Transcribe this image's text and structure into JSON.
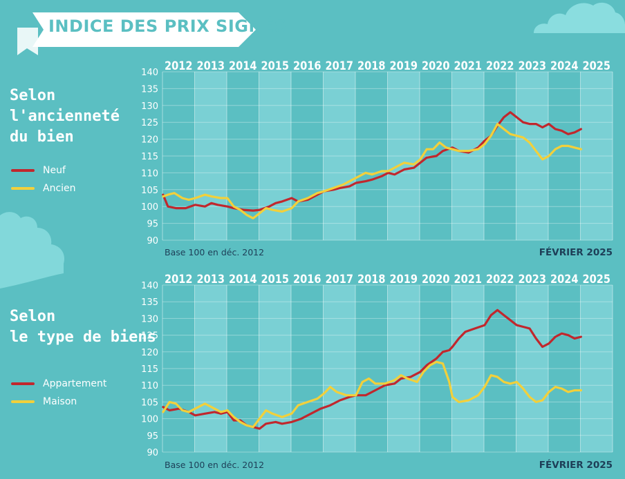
{
  "page": {
    "title": "INDICE DES PRIX SIGNÉS",
    "colors": {
      "background": "#5bbfc2",
      "band_light": "#82d5d8",
      "band_dark": "#5bbfc2",
      "red": "#c1272d",
      "yellow": "#f2d03b",
      "title_text": "#5bbfc2",
      "footnote_text": "#1d3e57"
    }
  },
  "chart_data": [
    {
      "type": "line",
      "section_title": [
        "Selon",
        "l'ancienneté",
        "du bien"
      ],
      "years": [
        "2012",
        "2013",
        "2014",
        "2015",
        "2016",
        "2017",
        "2018",
        "2019",
        "2020",
        "2021",
        "2022",
        "2023",
        "2024",
        "2025"
      ],
      "ylim": [
        90,
        140
      ],
      "yticks": [
        90,
        95,
        100,
        105,
        110,
        115,
        120,
        125,
        130,
        135,
        140
      ],
      "base_note": "Base 100 en déc. 2012",
      "date_note": "FÉVRIER 2025",
      "series": [
        {
          "name": "Neuf",
          "color": "#c1272d",
          "points": [
            [
              2012.0,
              103.5
            ],
            [
              2012.15,
              100
            ],
            [
              2012.4,
              99.5
            ],
            [
              2012.7,
              99.5
            ],
            [
              2013.0,
              100.5
            ],
            [
              2013.3,
              100
            ],
            [
              2013.5,
              101
            ],
            [
              2013.7,
              100.5
            ],
            [
              2014.0,
              100
            ],
            [
              2014.2,
              99.5
            ],
            [
              2014.5,
              99
            ],
            [
              2014.8,
              98.8
            ],
            [
              2015.0,
              99
            ],
            [
              2015.3,
              100
            ],
            [
              2015.5,
              101
            ],
            [
              2015.7,
              101.5
            ],
            [
              2016.0,
              102.5
            ],
            [
              2016.2,
              101.5
            ],
            [
              2016.5,
              102
            ],
            [
              2016.8,
              103.5
            ],
            [
              2017.0,
              104.5
            ],
            [
              2017.3,
              105
            ],
            [
              2017.5,
              105.5
            ],
            [
              2017.8,
              106
            ],
            [
              2018.0,
              107
            ],
            [
              2018.3,
              107.5
            ],
            [
              2018.5,
              108
            ],
            [
              2018.8,
              109
            ],
            [
              2019.0,
              110
            ],
            [
              2019.2,
              109.5
            ],
            [
              2019.5,
              111
            ],
            [
              2019.8,
              111.5
            ],
            [
              2020.0,
              113
            ],
            [
              2020.2,
              114.5
            ],
            [
              2020.5,
              115
            ],
            [
              2020.7,
              116.5
            ],
            [
              2021.0,
              117.5
            ],
            [
              2021.2,
              116.5
            ],
            [
              2021.5,
              116
            ],
            [
              2021.8,
              117.5
            ],
            [
              2022.0,
              119.5
            ],
            [
              2022.2,
              121
            ],
            [
              2022.4,
              124
            ],
            [
              2022.6,
              126.5
            ],
            [
              2022.8,
              128
            ],
            [
              2023.0,
              126.5
            ],
            [
              2023.2,
              125
            ],
            [
              2023.4,
              124.5
            ],
            [
              2023.6,
              124.5
            ],
            [
              2023.8,
              123.5
            ],
            [
              2024.0,
              124.5
            ],
            [
              2024.2,
              123
            ],
            [
              2024.4,
              122.5
            ],
            [
              2024.6,
              121.5
            ],
            [
              2024.8,
              122
            ],
            [
              2025.0,
              123
            ]
          ]
        },
        {
          "name": "Ancien",
          "color": "#f2d03b",
          "points": [
            [
              2012.0,
              103
            ],
            [
              2012.15,
              103.5
            ],
            [
              2012.35,
              104
            ],
            [
              2012.6,
              102.5
            ],
            [
              2012.8,
              102
            ],
            [
              2013.0,
              102.5
            ],
            [
              2013.3,
              103.5
            ],
            [
              2013.5,
              103
            ],
            [
              2013.8,
              102.5
            ],
            [
              2014.0,
              102.5
            ],
            [
              2014.2,
              100
            ],
            [
              2014.4,
              99
            ],
            [
              2014.6,
              97.5
            ],
            [
              2014.8,
              96.5
            ],
            [
              2015.0,
              98
            ],
            [
              2015.2,
              99.5
            ],
            [
              2015.4,
              99
            ],
            [
              2015.7,
              98.5
            ],
            [
              2016.0,
              99.5
            ],
            [
              2016.2,
              101.5
            ],
            [
              2016.5,
              102.5
            ],
            [
              2016.8,
              104
            ],
            [
              2017.0,
              104.5
            ],
            [
              2017.3,
              105.5
            ],
            [
              2017.6,
              106.5
            ],
            [
              2017.8,
              107.5
            ],
            [
              2018.0,
              108.5
            ],
            [
              2018.3,
              110
            ],
            [
              2018.5,
              109.5
            ],
            [
              2018.8,
              110.5
            ],
            [
              2019.0,
              110.5
            ],
            [
              2019.3,
              112
            ],
            [
              2019.5,
              113
            ],
            [
              2019.8,
              112.5
            ],
            [
              2020.0,
              114
            ],
            [
              2020.2,
              117
            ],
            [
              2020.4,
              117
            ],
            [
              2020.6,
              119
            ],
            [
              2020.8,
              117.5
            ],
            [
              2021.0,
              117
            ],
            [
              2021.2,
              116.5
            ],
            [
              2021.5,
              116.5
            ],
            [
              2021.8,
              117
            ],
            [
              2022.0,
              118.5
            ],
            [
              2022.2,
              121
            ],
            [
              2022.4,
              124.5
            ],
            [
              2022.6,
              123
            ],
            [
              2022.8,
              121.5
            ],
            [
              2023.0,
              121
            ],
            [
              2023.2,
              120.5
            ],
            [
              2023.4,
              119
            ],
            [
              2023.6,
              116.5
            ],
            [
              2023.8,
              114
            ],
            [
              2024.0,
              115
            ],
            [
              2024.2,
              117
            ],
            [
              2024.4,
              118
            ],
            [
              2024.6,
              118
            ],
            [
              2024.8,
              117.5
            ],
            [
              2025.0,
              117
            ]
          ]
        }
      ]
    },
    {
      "type": "line",
      "section_title": [
        "Selon",
        "le type de biens"
      ],
      "years": [
        "2012",
        "2013",
        "2014",
        "2015",
        "2016",
        "2017",
        "2018",
        "2019",
        "2020",
        "2021",
        "2022",
        "2023",
        "2024",
        "2025"
      ],
      "ylim": [
        90,
        140
      ],
      "yticks": [
        90,
        95,
        100,
        105,
        110,
        115,
        120,
        125,
        130,
        135,
        140
      ],
      "base_note": "Base 100 en déc. 2012",
      "date_note": "FÉVRIER 2025",
      "series": [
        {
          "name": "Appartement",
          "color": "#c1272d",
          "points": [
            [
              2012.0,
              103.5
            ],
            [
              2012.2,
              102.5
            ],
            [
              2012.5,
              103
            ],
            [
              2012.8,
              102
            ],
            [
              2013.0,
              101
            ],
            [
              2013.3,
              101.5
            ],
            [
              2013.6,
              102
            ],
            [
              2013.8,
              101.5
            ],
            [
              2014.0,
              102
            ],
            [
              2014.2,
              99.5
            ],
            [
              2014.4,
              99.5
            ],
            [
              2014.6,
              98
            ],
            [
              2014.8,
              97.5
            ],
            [
              2015.0,
              97
            ],
            [
              2015.2,
              98.5
            ],
            [
              2015.5,
              99
            ],
            [
              2015.7,
              98.5
            ],
            [
              2016.0,
              99
            ],
            [
              2016.3,
              100
            ],
            [
              2016.6,
              101.5
            ],
            [
              2016.9,
              103
            ],
            [
              2017.2,
              104
            ],
            [
              2017.5,
              105.5
            ],
            [
              2017.8,
              106.5
            ],
            [
              2018.0,
              107
            ],
            [
              2018.3,
              107
            ],
            [
              2018.6,
              108.5
            ],
            [
              2018.9,
              110
            ],
            [
              2019.2,
              110.5
            ],
            [
              2019.4,
              112
            ],
            [
              2019.7,
              112.5
            ],
            [
              2020.0,
              114
            ],
            [
              2020.2,
              116
            ],
            [
              2020.5,
              118
            ],
            [
              2020.7,
              120
            ],
            [
              2020.9,
              120.5
            ],
            [
              2021.0,
              121.5
            ],
            [
              2021.2,
              124
            ],
            [
              2021.4,
              126
            ],
            [
              2021.7,
              127
            ],
            [
              2022.0,
              128
            ],
            [
              2022.2,
              131
            ],
            [
              2022.4,
              132.5
            ],
            [
              2022.6,
              131
            ],
            [
              2022.8,
              129.5
            ],
            [
              2023.0,
              128
            ],
            [
              2023.2,
              127.5
            ],
            [
              2023.4,
              127
            ],
            [
              2023.6,
              124
            ],
            [
              2023.8,
              121.5
            ],
            [
              2024.0,
              122.5
            ],
            [
              2024.2,
              124.5
            ],
            [
              2024.4,
              125.5
            ],
            [
              2024.6,
              125
            ],
            [
              2024.8,
              124
            ],
            [
              2025.0,
              124.5
            ]
          ]
        },
        {
          "name": "Maison",
          "color": "#f2d03b",
          "points": [
            [
              2012.0,
              102
            ],
            [
              2012.2,
              105
            ],
            [
              2012.4,
              104.5
            ],
            [
              2012.6,
              102.5
            ],
            [
              2012.8,
              102
            ],
            [
              2013.0,
              103
            ],
            [
              2013.3,
              104.5
            ],
            [
              2013.5,
              103.5
            ],
            [
              2013.8,
              102
            ],
            [
              2014.0,
              102.5
            ],
            [
              2014.2,
              100.5
            ],
            [
              2014.4,
              99
            ],
            [
              2014.6,
              98
            ],
            [
              2014.8,
              97.5
            ],
            [
              2015.0,
              100
            ],
            [
              2015.2,
              102.5
            ],
            [
              2015.4,
              101.5
            ],
            [
              2015.7,
              100.5
            ],
            [
              2016.0,
              101.5
            ],
            [
              2016.2,
              104
            ],
            [
              2016.5,
              105
            ],
            [
              2016.8,
              106
            ],
            [
              2017.0,
              107.5
            ],
            [
              2017.2,
              109.5
            ],
            [
              2017.4,
              108
            ],
            [
              2017.7,
              107
            ],
            [
              2018.0,
              107
            ],
            [
              2018.2,
              111
            ],
            [
              2018.4,
              112
            ],
            [
              2018.6,
              110.5
            ],
            [
              2018.9,
              110.5
            ],
            [
              2019.2,
              111.5
            ],
            [
              2019.4,
              113
            ],
            [
              2019.6,
              112
            ],
            [
              2019.9,
              111
            ],
            [
              2020.1,
              114
            ],
            [
              2020.3,
              116
            ],
            [
              2020.5,
              117
            ],
            [
              2020.7,
              116.5
            ],
            [
              2020.9,
              111
            ],
            [
              2021.0,
              106.5
            ],
            [
              2021.2,
              105
            ],
            [
              2021.5,
              105.5
            ],
            [
              2021.8,
              107
            ],
            [
              2022.0,
              109.5
            ],
            [
              2022.2,
              113
            ],
            [
              2022.4,
              112.5
            ],
            [
              2022.6,
              111
            ],
            [
              2022.8,
              110.5
            ],
            [
              2023.0,
              111
            ],
            [
              2023.2,
              109
            ],
            [
              2023.4,
              106.5
            ],
            [
              2023.6,
              105
            ],
            [
              2023.8,
              105.5
            ],
            [
              2024.0,
              108
            ],
            [
              2024.2,
              109.5
            ],
            [
              2024.4,
              109
            ],
            [
              2024.6,
              108
            ],
            [
              2024.8,
              108.5
            ],
            [
              2025.0,
              108.5
            ]
          ]
        }
      ]
    }
  ]
}
